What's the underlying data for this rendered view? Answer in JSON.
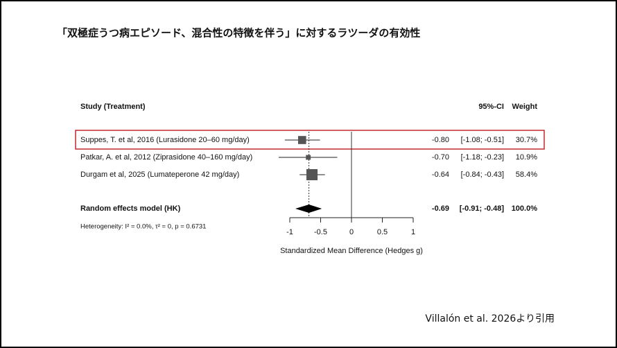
{
  "chart_data": {
    "type": "forest",
    "title": "「双極症うつ病エピソード、混合性の特徴を伴う」に対するラツーダの有効性",
    "column_headers": {
      "study": "Study (Treatment)",
      "ci": "95%-CI",
      "weight": "Weight"
    },
    "categories": [
      "Suppes, T. et al, 2016 (Lurasidone 20–60 mg/day)",
      "Patkar, A. et al, 2012 (Ziprasidone 40–160 mg/day)",
      "Durgam et al, 2025 (Lumateperone 42 mg/day)"
    ],
    "values": [
      -0.8,
      -0.7,
      -0.64
    ],
    "value_labels": [
      "-0.80",
      "-0.70",
      "-0.64"
    ],
    "ci_lower": [
      -1.08,
      -1.18,
      -0.84
    ],
    "ci_upper": [
      -0.51,
      -0.23,
      -0.43
    ],
    "ci_labels": [
      "[-1.08; -0.51]",
      "[-1.18; -0.23]",
      "[-0.84; -0.43]"
    ],
    "weights": [
      30.7,
      10.9,
      58.4
    ],
    "weight_labels": [
      "30.7%",
      "10.9%",
      "58.4%"
    ],
    "summary": {
      "name": "Random effects model (HK)",
      "value": -0.69,
      "value_label": "-0.69",
      "ci_lower": -0.91,
      "ci_upper": -0.48,
      "ci_label": "[-0.91; -0.48]",
      "weight": 100,
      "weight_label": "100.0%"
    },
    "heterogeneity": "Heterogeneity: I² = 0.0%, τ² = 0, p = 0.6731",
    "xlabel": "Standardized Mean Difference (Hedges g)",
    "xlim": [
      -1,
      1
    ],
    "xticks": [
      -1,
      -0.5,
      0,
      0.5,
      1
    ],
    "color": "#555555",
    "source": "Villalón et al. 2026より引用"
  }
}
